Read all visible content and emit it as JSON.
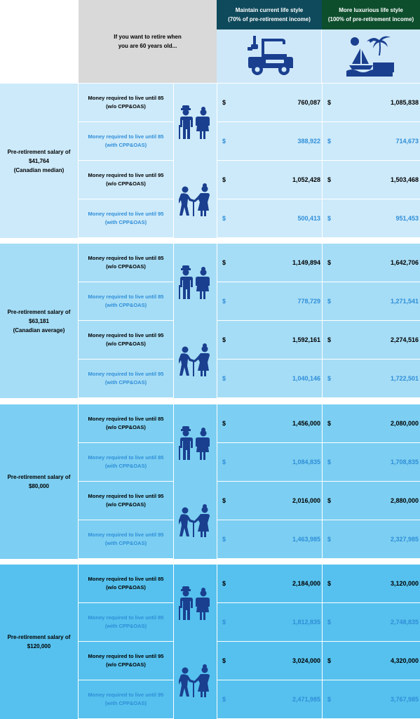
{
  "header": {
    "question": "If you want to retire when\nyou are 60 years old...",
    "col1": "Maintain current life style\n(70% of pre-retirement income)",
    "col2": "More luxurious life style\n(100% of pre-retirement income)",
    "col1_icon": "golf-cart-icon",
    "col2_icon": "beach-sailboat-icon"
  },
  "currency_symbol": "$",
  "row_labels": {
    "r85_no": "Money required to live until 85\n(w/o CPP&OAS)",
    "r85_with": "Money required to live until 85\n(with CPP&OAS)",
    "r95_no": "Money required to live until 95\n(w/o CPP&OAS)",
    "r95_with": "Money required to live until 95\n(with CPP&OAS)"
  },
  "groups": [
    {
      "salary": "Pre-retirement salary of\n$41,764\n(Canadian median)",
      "bg": "#cdeafa",
      "values": [
        [
          "760,087",
          "1,085,838"
        ],
        [
          "388,922",
          "714,673"
        ],
        [
          "1,052,428",
          "1,503,468"
        ],
        [
          "500,413",
          "951,453"
        ]
      ]
    },
    {
      "salary": "Pre-retirement salary of\n$63,181\n(Canadian average)",
      "bg": "#a6ddf6",
      "values": [
        [
          "1,149,894",
          "1,642,706"
        ],
        [
          "778,729",
          "1,271,541"
        ],
        [
          "1,592,161",
          "2,274,516"
        ],
        [
          "1,040,146",
          "1,722,501"
        ]
      ]
    },
    {
      "salary": "Pre-retirement salary of\n$80,000",
      "bg": "#7ccff2",
      "values": [
        [
          "1,456,000",
          "2,080,000"
        ],
        [
          "1,084,835",
          "1,708,835"
        ],
        [
          "2,016,000",
          "2,880,000"
        ],
        [
          "1,463,985",
          "2,327,985"
        ]
      ]
    },
    {
      "salary": "Pre-retirement salary of\n$120,000",
      "bg": "#56c1ee",
      "values": [
        [
          "2,184,000",
          "3,120,000"
        ],
        [
          "1,812,835",
          "2,748,835"
        ],
        [
          "3,024,000",
          "4,320,000"
        ],
        [
          "2,471,985",
          "3,767,985"
        ]
      ]
    }
  ],
  "colors": {
    "header_dark": "#0e4a5c",
    "header_green": "#0d4e2c",
    "icon_blue": "#1a3f8f",
    "text_blue": "#2f8ed8"
  }
}
